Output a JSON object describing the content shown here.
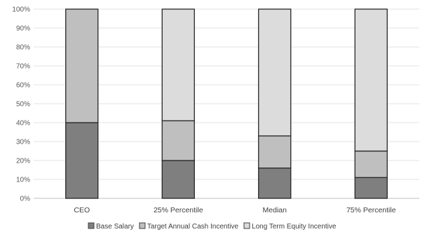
{
  "chart_data": {
    "type": "bar",
    "stacked": true,
    "percent_axis": true,
    "categories": [
      "CEO",
      "25% Percentile",
      "Median",
      "75% Percentile"
    ],
    "series": [
      {
        "name": "Base Salary",
        "values": [
          40,
          20,
          16,
          11
        ],
        "color": "#7f7f7f"
      },
      {
        "name": "Target Annual Cash Incentive",
        "values": [
          60,
          21,
          17,
          14
        ],
        "color": "#bfbfbf"
      },
      {
        "name": "Long Term Equity Incentive",
        "values": [
          0,
          59,
          67,
          75
        ],
        "color": "#dcdcdc"
      }
    ],
    "ylim": [
      0,
      100
    ],
    "yticks": [
      "0%",
      "10%",
      "20%",
      "30%",
      "40%",
      "50%",
      "60%",
      "70%",
      "80%",
      "90%",
      "100%"
    ],
    "grid": true,
    "legend_position": "bottom"
  }
}
